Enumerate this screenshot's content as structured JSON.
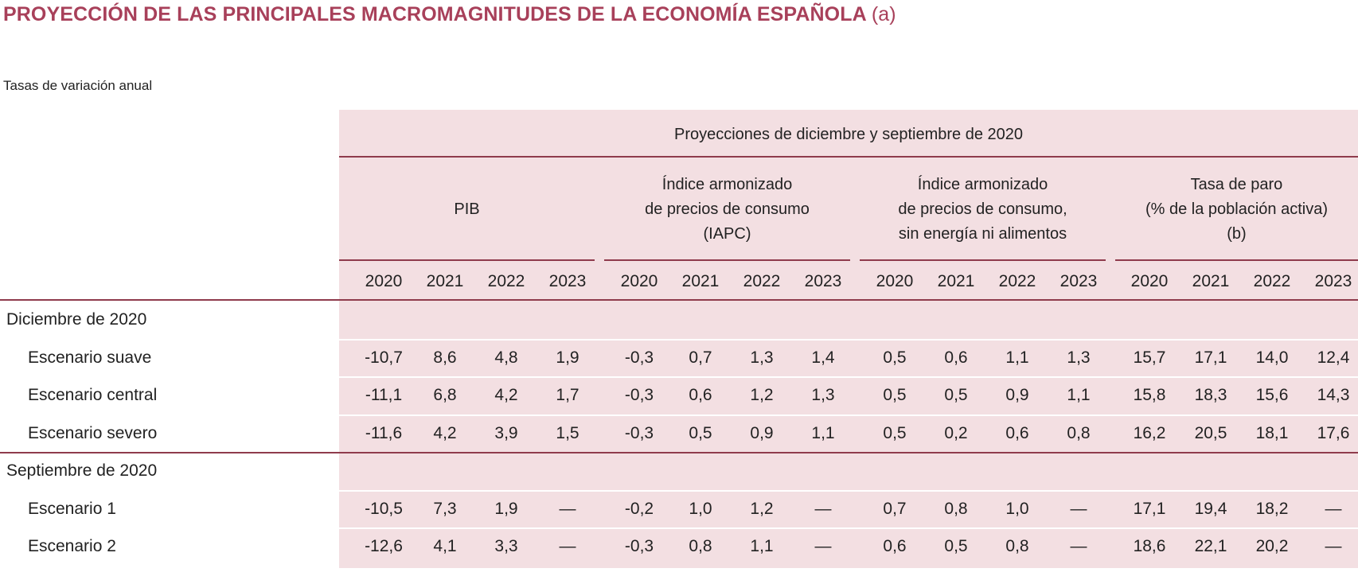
{
  "title": {
    "main": "PROYECCIÓN DE LAS PRINCIPALES MACROMAGNITUDES DE LA ECONOMÍA ESPAÑOLA",
    "suffix": "(a)"
  },
  "subtitle": "Tasas de variación anual",
  "header": {
    "projections": "Proyecciones de diciembre y septiembre de 2020",
    "groups": [
      {
        "lines": [
          "PIB"
        ]
      },
      {
        "lines": [
          "Índice armonizado",
          "de precios de consumo",
          "(IAPC)"
        ]
      },
      {
        "lines": [
          "Índice armonizado",
          "de precios de consumo,",
          "sin energía ni alimentos"
        ]
      },
      {
        "lines": [
          "Tasa de paro",
          "(% de la población activa)",
          "(b)"
        ]
      }
    ],
    "years": [
      "2020",
      "2021",
      "2022",
      "2023"
    ]
  },
  "sections": [
    {
      "label": "Diciembre de 2020",
      "rows": [
        {
          "label": "Escenario suave",
          "values": [
            "-10,7",
            "8,6",
            "4,8",
            "1,9",
            "-0,3",
            "0,7",
            "1,3",
            "1,4",
            "0,5",
            "0,6",
            "1,1",
            "1,3",
            "15,7",
            "17,1",
            "14,0",
            "12,4"
          ]
        },
        {
          "label": "Escenario central",
          "values": [
            "-11,1",
            "6,8",
            "4,2",
            "1,7",
            "-0,3",
            "0,6",
            "1,2",
            "1,3",
            "0,5",
            "0,5",
            "0,9",
            "1,1",
            "15,8",
            "18,3",
            "15,6",
            "14,3"
          ]
        },
        {
          "label": "Escenario severo",
          "values": [
            "-11,6",
            "4,2",
            "3,9",
            "1,5",
            "-0,3",
            "0,5",
            "0,9",
            "1,1",
            "0,5",
            "0,2",
            "0,6",
            "0,8",
            "16,2",
            "20,5",
            "18,1",
            "17,6"
          ]
        }
      ]
    },
    {
      "label": "Septiembre de 2020",
      "rows": [
        {
          "label": "Escenario 1",
          "values": [
            "-10,5",
            "7,3",
            "1,9",
            "—",
            "-0,2",
            "1,0",
            "1,2",
            "—",
            "0,7",
            "0,8",
            "1,0",
            "—",
            "17,1",
            "19,4",
            "18,2",
            "—"
          ]
        },
        {
          "label": "Escenario 2",
          "values": [
            "-12,6",
            "4,1",
            "3,3",
            "—",
            "-0,3",
            "0,8",
            "1,1",
            "—",
            "0,6",
            "0,5",
            "0,8",
            "—",
            "18,6",
            "22,1",
            "20,2",
            "—"
          ]
        }
      ]
    }
  ]
}
